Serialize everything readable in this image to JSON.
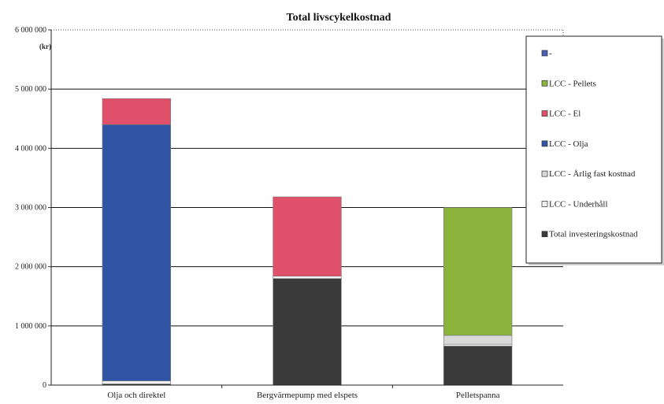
{
  "chart_data": {
    "type": "bar",
    "stacked": true,
    "title": "Total livscykelkostnad",
    "ylabel": "(kr)",
    "xlabel": "",
    "ylim": [
      0,
      6000000
    ],
    "yticks": [
      0,
      1000000,
      2000000,
      3000000,
      4000000,
      5000000,
      6000000
    ],
    "ytick_labels": [
      "0",
      "1 000 000",
      "2 000 000",
      "3 000 000",
      "4 000 000",
      "5 000 000",
      "6 000 000"
    ],
    "grid": true,
    "legend_position": "right",
    "categories": [
      "Olja och direktel",
      "Bergvärmepump med elspets",
      "Pelletspanna"
    ],
    "series": [
      {
        "name": "Total investeringskostnad",
        "color": "#3a3a3a",
        "values": [
          20000,
          1800000,
          660000
        ]
      },
      {
        "name": "LCC - Underhåll",
        "color": "#f2f2f2",
        "values": [
          50000,
          40000,
          30000
        ]
      },
      {
        "name": "LCC - Årlig fast kostnad",
        "color": "#d8d8d8",
        "values": [
          0,
          0,
          150000
        ]
      },
      {
        "name": "LCC - Olja",
        "color": "#2f55a4",
        "values": [
          4330000,
          0,
          0
        ]
      },
      {
        "name": "LCC - El",
        "color": "#e0506a",
        "values": [
          440000,
          1340000,
          0
        ]
      },
      {
        "name": "LCC - Pellets",
        "color": "#8cb43c",
        "values": [
          0,
          0,
          2160000
        ]
      },
      {
        "name": "-",
        "color": "#4a5fb0",
        "values": [
          0,
          0,
          0
        ]
      }
    ],
    "legend_order": [
      "-",
      "LCC - Pellets",
      "LCC - El",
      "LCC - Olja",
      "LCC - Årlig fast kostnad",
      "LCC - Underhåll",
      "Total investeringskostnad"
    ]
  }
}
